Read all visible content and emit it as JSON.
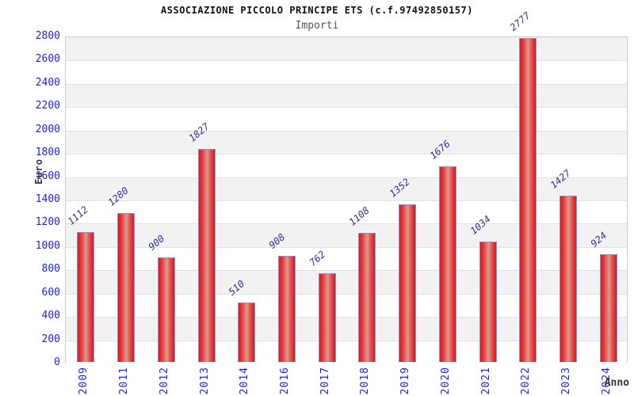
{
  "header": {
    "title": "ASSOCIAZIONE PICCOLO PRINCIPE ETS (c.f.97492850157)",
    "subtitle": "Importi"
  },
  "chart_data": {
    "type": "bar",
    "title": "ASSOCIAZIONE PICCOLO PRINCIPE ETS (c.f.97492850157)",
    "subtitle": "Importi",
    "categories": [
      "2009",
      "2011",
      "2012",
      "2013",
      "2014",
      "2016",
      "2017",
      "2018",
      "2019",
      "2020",
      "2021",
      "2022",
      "2023",
      "2024"
    ],
    "values": [
      1112,
      1280,
      900,
      1827,
      510,
      908,
      762,
      1108,
      1352,
      1676,
      1034,
      2777,
      1427,
      924
    ],
    "xlabel": "Anno",
    "ylabel": "Euro",
    "ylim": [
      0,
      2800
    ],
    "ytick_step": 200,
    "ytick_labels": [
      "0",
      "200",
      "400",
      "600",
      "800",
      "1000",
      "1200",
      "1400",
      "1600",
      "1800",
      "2000",
      "2200",
      "2400",
      "2600",
      "2800"
    ],
    "grid": "horizontal-alternating-bands",
    "legend": "none",
    "colors": {
      "bar_fill_edge": "#e0151f",
      "bar_fill_highlight": "#d89a92",
      "bar_border": "#66a0e8",
      "tick_label": "#2222cc",
      "value_label": "#333388",
      "band_gray": "#f2f2f2",
      "band_white": "#ffffff",
      "gridline": "#e2e2e2",
      "plot_border": "#cccccc",
      "title": "#111111",
      "subtitle": "#555555",
      "axis_title": "#333333"
    }
  }
}
